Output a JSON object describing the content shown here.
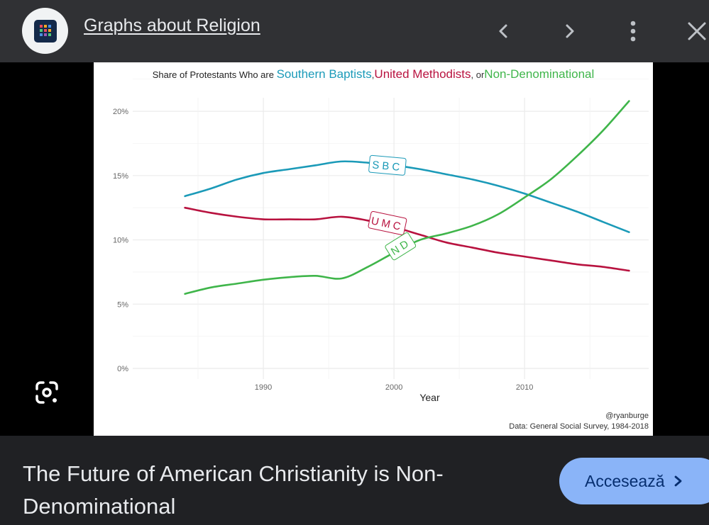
{
  "header": {
    "site_title": "Graphs about Religion",
    "site_icon": "graphs-about-religion-logo",
    "prev_icon": "chevron-left-icon",
    "next_icon": "chevron-right-icon",
    "more_icon": "more-vert-icon",
    "close_icon": "close-icon"
  },
  "lens_icon": "google-lens-icon",
  "caption": "The Future of American Christianity is Non-Denominational",
  "visit_button": {
    "label": "Accesează",
    "icon": "chevron-right-icon"
  },
  "chart_data": {
    "type": "line",
    "title_prefix": "Share of Protestants  Who are",
    "title_parts": [
      {
        "text": "Southern Baptists",
        "color": "#1b9ab8"
      },
      {
        "text": ",",
        "color": "#333333"
      },
      {
        "text": "United Methodists",
        "color": "#b8123f"
      },
      {
        "text": ", or",
        "color": "#333333"
      },
      {
        "text": "Non-Denominational",
        "color": "#3fb54a"
      }
    ],
    "xlabel": "Year",
    "ylabel": "",
    "xlim": [
      1980,
      2019.5
    ],
    "ylim": [
      0,
      0.2
    ],
    "x_ticks": [
      1990,
      2000,
      2010
    ],
    "y_ticks": [
      0,
      0.05,
      0.1,
      0.15,
      0.2
    ],
    "y_tick_labels": [
      "0%",
      "5%",
      "10%",
      "15%",
      "20%"
    ],
    "grid": true,
    "series": [
      {
        "name": "SBC",
        "color": "#1b9ab8",
        "x": [
          1984,
          1986,
          1988,
          1990,
          1992,
          1994,
          1996,
          1998,
          2000,
          2002,
          2004,
          2006,
          2008,
          2010,
          2012,
          2014,
          2016,
          2018
        ],
        "y": [
          0.134,
          0.14,
          0.147,
          0.152,
          0.155,
          0.158,
          0.161,
          0.16,
          0.158,
          0.155,
          0.151,
          0.147,
          0.142,
          0.136,
          0.129,
          0.122,
          0.114,
          0.106
        ]
      },
      {
        "name": "UMC",
        "color": "#b8123f",
        "x": [
          1984,
          1986,
          1988,
          1990,
          1992,
          1994,
          1996,
          1998,
          2000,
          2002,
          2004,
          2006,
          2008,
          2010,
          2012,
          2014,
          2016,
          2018
        ],
        "y": [
          0.125,
          0.121,
          0.118,
          0.116,
          0.116,
          0.116,
          0.118,
          0.115,
          0.11,
          0.104,
          0.098,
          0.094,
          0.09,
          0.087,
          0.084,
          0.081,
          0.079,
          0.076
        ]
      },
      {
        "name": "ND",
        "color": "#3fb54a",
        "x": [
          1984,
          1986,
          1988,
          1990,
          1992,
          1994,
          1996,
          1998,
          2000,
          2002,
          2004,
          2006,
          2008,
          2010,
          2012,
          2014,
          2016,
          2018
        ],
        "y": [
          0.058,
          0.063,
          0.066,
          0.069,
          0.071,
          0.072,
          0.07,
          0.079,
          0.09,
          0.1,
          0.105,
          0.111,
          0.12,
          0.133,
          0.147,
          0.165,
          0.185,
          0.208
        ]
      }
    ],
    "labels": [
      {
        "text": "SBC",
        "x": 1999.5,
        "y": 0.158,
        "color": "#1b9ab8",
        "angle": 5
      },
      {
        "text": "UMC",
        "x": 1999.5,
        "y": 0.113,
        "color": "#b8123f",
        "angle": 12
      },
      {
        "text": "ND",
        "x": 2000.5,
        "y": 0.095,
        "color": "#3fb54a",
        "angle": -32
      }
    ],
    "credit": "@ryanburge",
    "source": "Data: General Social Survey, 1984-2018"
  }
}
